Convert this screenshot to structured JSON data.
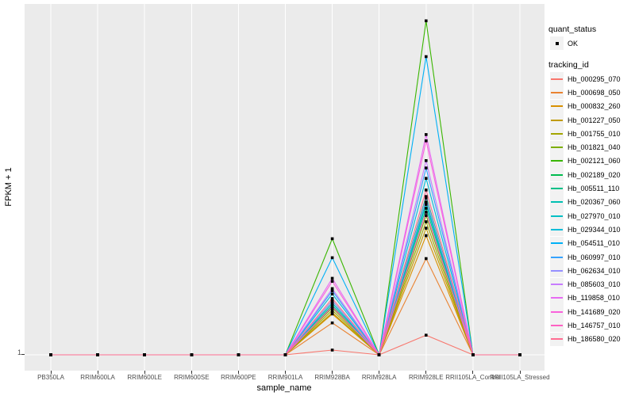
{
  "y_axis": {
    "title": "FPKM + 1",
    "tick_label": "1"
  },
  "x_axis": {
    "title": "sample_name"
  },
  "legend": {
    "quant_status_title": "quant_status",
    "quant_status_items": [
      {
        "label": "OK",
        "symbol": "black-square-point"
      }
    ],
    "tracking_id_title": "tracking_id"
  },
  "chart_data": {
    "type": "line",
    "title": "",
    "xlabel": "sample_name",
    "ylabel": "FPKM + 1",
    "x": [
      "PB350LA",
      "RRIM600LA",
      "RRIM600LE",
      "RRIM600SE",
      "RRIM600PE",
      "RRIM901LA",
      "RRIM928BA",
      "RRIM928LA",
      "RRIM928LE",
      "RRII105LA_Control",
      "RRII105LA_Stressed"
    ],
    "y_axis_info": {
      "scale": "log10",
      "visible_tick_labels": [
        "1"
      ],
      "ylim_approx": [
        0.97,
        8.8
      ]
    },
    "layout_hints": {
      "legend_position": "right",
      "panel_grid": "white major gridlines on grey panel",
      "points": "black squares at every vertex"
    },
    "series": [
      {
        "name": "Hb_000295_070",
        "color": "#F8766D",
        "values": [
          1,
          1,
          1,
          1,
          1,
          1,
          1.03,
          1,
          1.13,
          1,
          1
        ]
      },
      {
        "name": "Hb_000698_050",
        "color": "#EA8331",
        "values": [
          1,
          1,
          1,
          1,
          1,
          1,
          1.22,
          1,
          1.82,
          1,
          1
        ]
      },
      {
        "name": "Hb_000832_260",
        "color": "#D89000",
        "values": [
          1,
          1,
          1,
          1,
          1,
          1,
          1.29,
          1,
          2.1,
          1,
          1
        ]
      },
      {
        "name": "Hb_001227_050",
        "color": "#C09B00",
        "values": [
          1,
          1,
          1,
          1,
          1,
          1,
          1.3,
          1,
          2.2,
          1,
          1
        ]
      },
      {
        "name": "Hb_001755_010",
        "color": "#A3A500",
        "values": [
          1,
          1,
          1,
          1,
          1,
          1,
          1.32,
          1,
          2.29,
          1,
          1
        ]
      },
      {
        "name": "Hb_001821_040",
        "color": "#7CAE00",
        "values": [
          1,
          1,
          1,
          1,
          1,
          1,
          1.34,
          1,
          2.38,
          1,
          1
        ]
      },
      {
        "name": "Hb_002121_060",
        "color": "#39B600",
        "values": [
          1,
          1,
          1,
          1,
          1,
          1,
          2.06,
          1,
          8.0,
          1,
          1
        ]
      },
      {
        "name": "Hb_002189_020",
        "color": "#00BB4E",
        "values": [
          1,
          1,
          1,
          1,
          1,
          1,
          1.4,
          1,
          2.68,
          1,
          1
        ]
      },
      {
        "name": "Hb_005511_110",
        "color": "#00C087",
        "values": [
          1,
          1,
          1,
          1,
          1,
          1,
          1.36,
          1,
          2.49,
          1,
          1
        ]
      },
      {
        "name": "Hb_020367_060",
        "color": "#00C0B2",
        "values": [
          1,
          1,
          1,
          1,
          1,
          1,
          1.38,
          1,
          2.55,
          1,
          1
        ]
      },
      {
        "name": "Hb_027970_010",
        "color": "#00BFC4",
        "values": [
          1,
          1,
          1,
          1,
          1,
          1,
          1.38,
          1,
          2.59,
          1,
          1
        ]
      },
      {
        "name": "Hb_029344_010",
        "color": "#00BCD8",
        "values": [
          1,
          1,
          1,
          1,
          1,
          1,
          1.46,
          1,
          3.0,
          1,
          1
        ]
      },
      {
        "name": "Hb_054511_010",
        "color": "#00B0F6",
        "values": [
          1,
          1,
          1,
          1,
          1,
          1,
          1.83,
          1,
          6.4,
          1,
          1
        ]
      },
      {
        "name": "Hb_060997_010",
        "color": "#35A2FF",
        "values": [
          1,
          1,
          1,
          1,
          1,
          1,
          1.49,
          1,
          3.2,
          1,
          1
        ]
      },
      {
        "name": "Hb_062634_010",
        "color": "#9590FF",
        "values": [
          1,
          1,
          1,
          1,
          1,
          1,
          1.4,
          1,
          2.65,
          1,
          1
        ]
      },
      {
        "name": "Hb_085603_010",
        "color": "#C77CFF",
        "values": [
          1,
          1,
          1,
          1,
          1,
          1,
          1.51,
          1,
          3.35,
          1,
          1
        ]
      },
      {
        "name": "Hb_119858_010",
        "color": "#E76BF3",
        "values": [
          1,
          1,
          1,
          1,
          1,
          1,
          1.61,
          1,
          3.94,
          1,
          1
        ]
      },
      {
        "name": "Hb_141689_020",
        "color": "#FA62DB",
        "values": [
          1,
          1,
          1,
          1,
          1,
          1,
          1.58,
          1,
          3.79,
          1,
          1
        ]
      },
      {
        "name": "Hb_146757_010",
        "color": "#FF61C3",
        "values": [
          1,
          1,
          1,
          1,
          1,
          1,
          1.35,
          1,
          2.43,
          1,
          1
        ]
      },
      {
        "name": "Hb_186580_020",
        "color": "#FF6C91",
        "values": [
          1,
          1,
          1,
          1,
          1,
          1,
          1.42,
          1,
          2.79,
          1,
          1
        ]
      }
    ],
    "style": {
      "panel_bg": "#EBEBEB",
      "grid_color": "#FFFFFF",
      "point_color": "#000000",
      "legend_key_bg": "#F2F2F2",
      "axis_text_color": "#4d4d4d"
    }
  }
}
